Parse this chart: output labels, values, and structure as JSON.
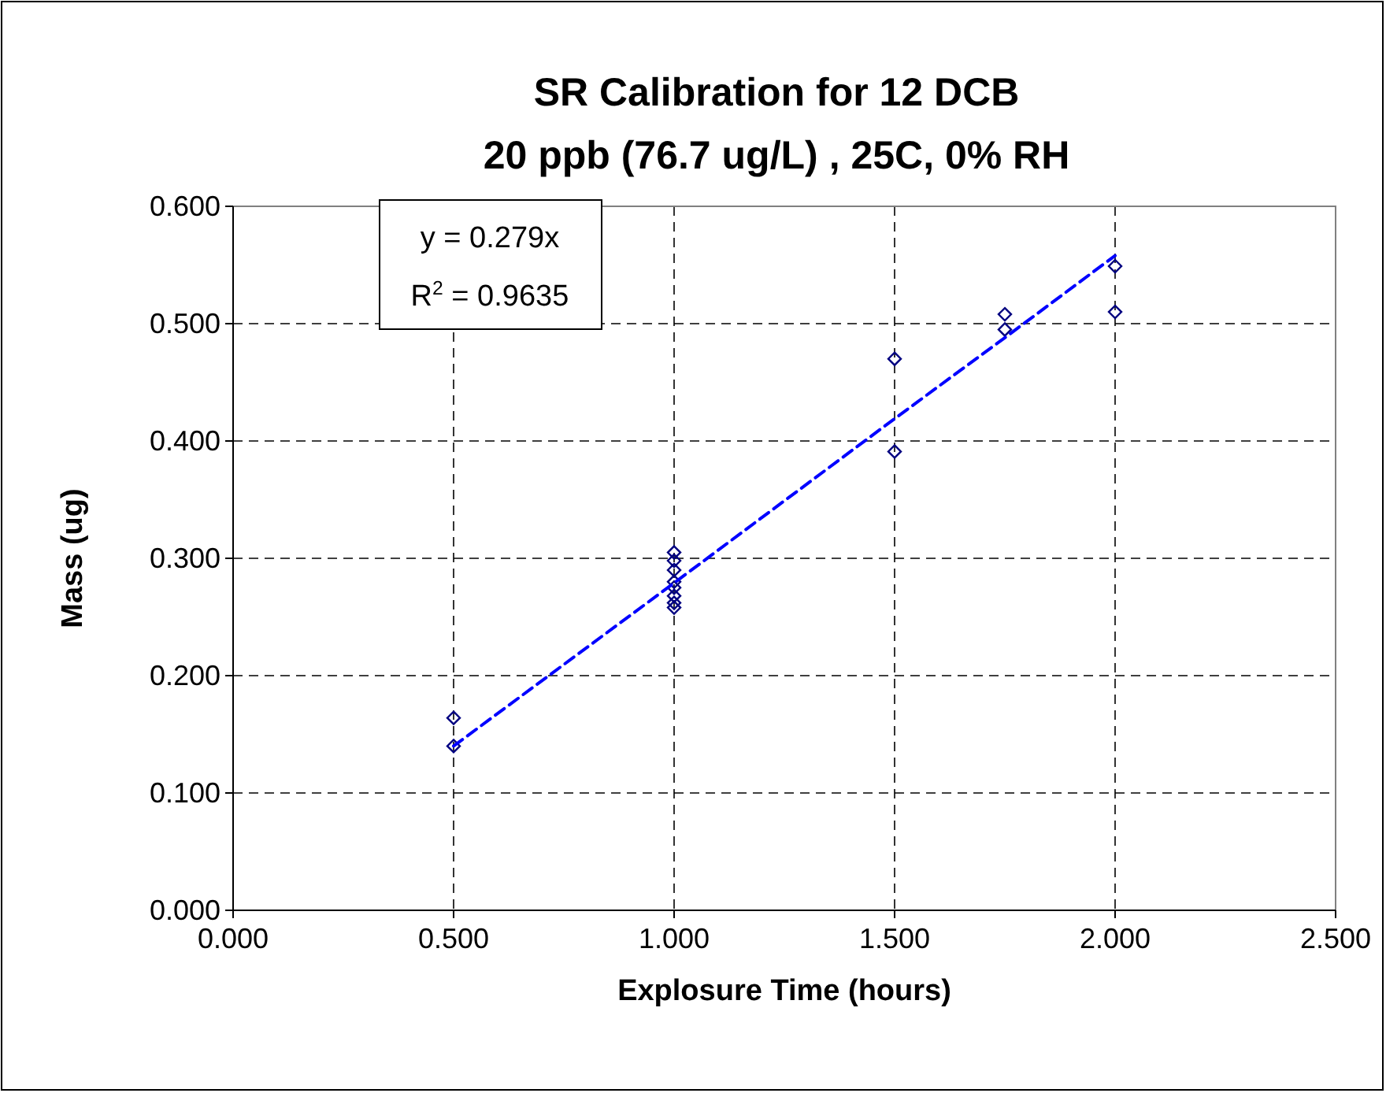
{
  "chart_data": {
    "type": "scatter",
    "title": "SR Calibration for 12 DCB",
    "subtitle": "20 ppb (76.7 ug/L) , 25C, 0% RH",
    "xlabel": "Explosure Time (hours)",
    "ylabel": "Mass (ug)",
    "annotations": [
      "y = 0.279x",
      "R$^{2}$ = 0.9635"
    ],
    "series": [
      {
        "color": "#000080",
        "marker": "diamond",
        "x": [
          0.5,
          0.5,
          1,
          1,
          1,
          1,
          1,
          1,
          1,
          1,
          1.5,
          1.5,
          1.75,
          1.75,
          2,
          2
        ],
        "values": [
          0.164,
          0.14,
          0.305,
          0.298,
          0.29,
          0.28,
          0.275,
          0.268,
          0.262,
          0.258,
          0.47,
          0.391,
          0.508,
          0.495,
          0.549,
          0.51
        ]
      },
      {
        "type": "line",
        "color": "#0000ff",
        "line_style": "dashed",
        "marker": "none",
        "x": [
          0.5,
          1,
          1.5,
          1.75,
          2
        ],
        "values": [
          0.14,
          0.279,
          0.419,
          0.488,
          0.558
        ]
      }
    ],
    "xlim": [
      0,
      2.5
    ],
    "xticks": [
      {
        "value": 0,
        "label": "0.000"
      },
      {
        "value": 0.5,
        "label": "0.500"
      },
      {
        "value": 1,
        "label": "1.000"
      },
      {
        "value": 1.5,
        "label": "1.500"
      },
      {
        "value": 2,
        "label": "2.000"
      },
      {
        "value": 2.5,
        "label": "2.500"
      }
    ],
    "ylim": [
      0,
      0.6
    ],
    "yticks": [
      {
        "value": 0,
        "label": "0.000"
      },
      {
        "value": 0.1,
        "label": "0.100"
      },
      {
        "value": 0.2,
        "label": "0.200"
      },
      {
        "value": 0.3,
        "label": "0.300"
      },
      {
        "value": 0.4,
        "label": "0.400"
      },
      {
        "value": 0.5,
        "label": "0.500"
      },
      {
        "value": 0.6,
        "label": "0.600"
      }
    ],
    "grid": true
  }
}
